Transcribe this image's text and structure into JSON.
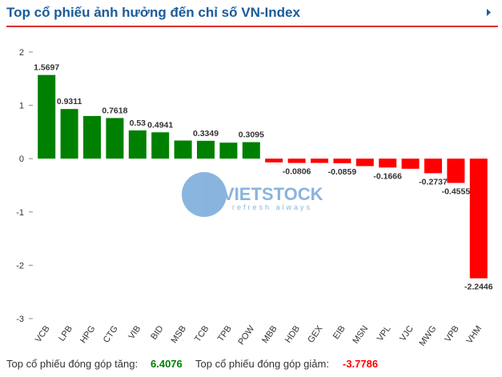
{
  "chart_data": {
    "type": "bar",
    "title": "Top cổ phiếu ảnh hưởng đến chỉ số VN-Index",
    "categories": [
      "VCB",
      "LPB",
      "HPG",
      "CTG",
      "VIB",
      "BID",
      "MSB",
      "TCB",
      "TPB",
      "POW",
      "MBB",
      "HDB",
      "GEX",
      "EIB",
      "MSN",
      "VPL",
      "VJC",
      "MWG",
      "VPB",
      "VHM"
    ],
    "values": [
      1.5697,
      0.9311,
      0.8,
      0.7618,
      0.53,
      0.4941,
      0.34,
      0.3349,
      0.3,
      0.3095,
      -0.07,
      -0.0806,
      -0.08,
      -0.0859,
      -0.14,
      -0.1666,
      -0.19,
      -0.2737,
      -0.4555,
      -2.2446
    ],
    "value_labels": [
      "1.5697",
      "0.9311",
      null,
      "0.7618",
      "0.53",
      "0.4941",
      null,
      "0.3349",
      null,
      "0.3095",
      null,
      "-0.0806",
      null,
      "-0.0859",
      null,
      "-0.1666",
      null,
      "-0.2737",
      "-0.4555",
      "-2.2446"
    ],
    "positive_color": "#008000",
    "negative_color": "#ff0000",
    "ylim": [
      -3,
      2
    ],
    "yticks": [
      -3,
      -2,
      -1,
      0,
      1,
      2
    ],
    "grid": false,
    "watermark": {
      "brand": "VIETSTOCK",
      "slogan": "refresh always"
    },
    "footer": {
      "up_label": "Top cổ phiếu đóng góp tăng:",
      "up_value": "6.4076",
      "down_label": "Top cổ phiếu đóng góp giảm:",
      "down_value": "-3.7786"
    }
  }
}
